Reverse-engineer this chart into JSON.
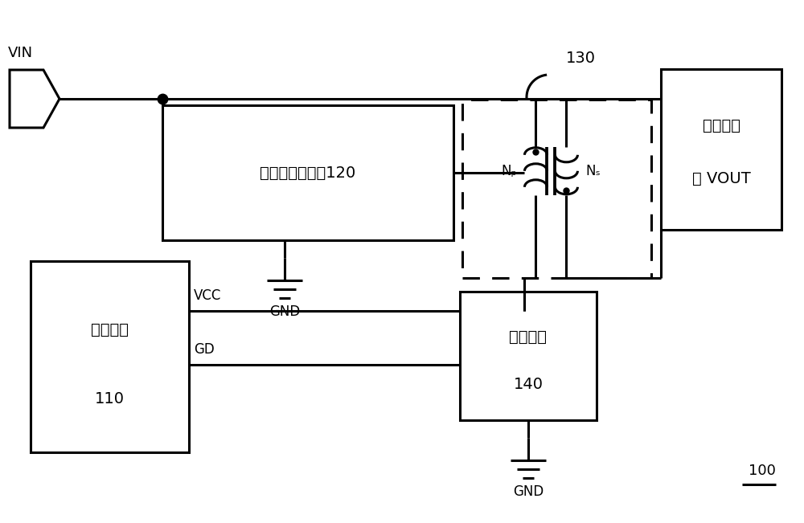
{
  "bg_color": "#ffffff",
  "lc": "#000000",
  "lw": 2.2,
  "label_100": "100",
  "label_vin": "VIN",
  "label_gnd1": "GND",
  "label_gnd2": "GND",
  "label_vcc": "VCC",
  "label_gd": "GD",
  "label_130": "130",
  "label_np": "Nₚ",
  "label_ns": "Nₛ",
  "label_block120": "线性稳压子电路120",
  "label_block110_l1": "驱动芯片",
  "label_block110_l2": "110",
  "label_block140_l1": "开关模块",
  "label_block140_l2": "140",
  "label_output_l1": "输出供电",
  "label_output_l2": "端 VOUT",
  "font_main": "SimSun",
  "font_size_large": 14,
  "font_size_med": 12,
  "font_size_small": 11
}
